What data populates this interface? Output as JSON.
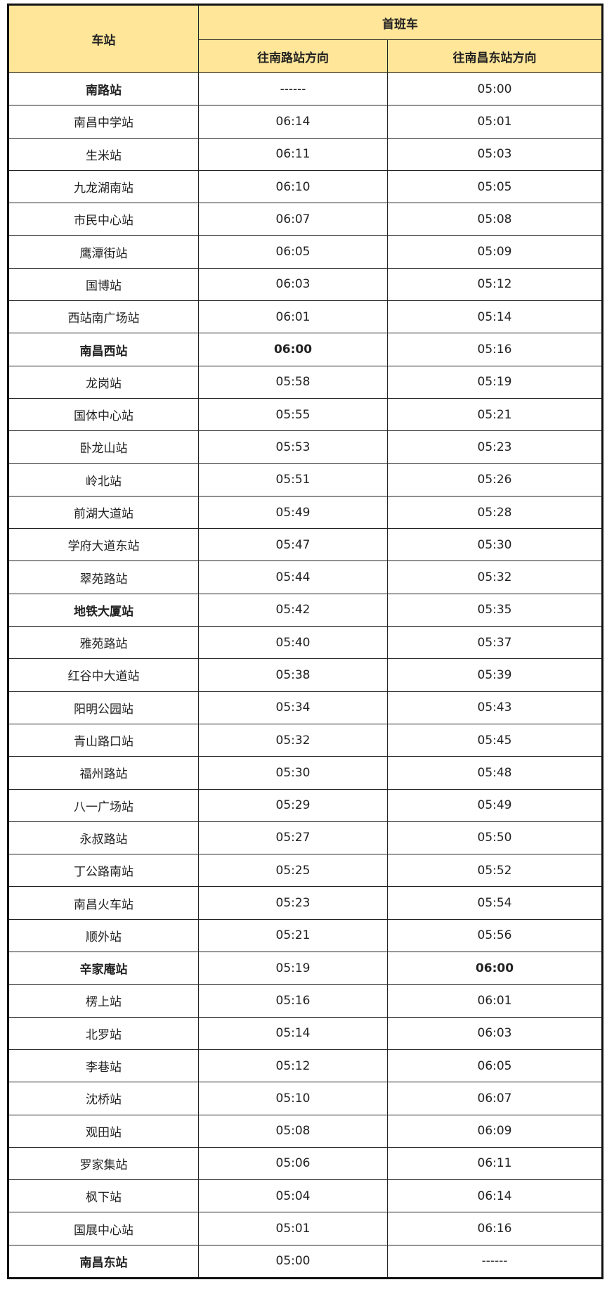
{
  "header": {
    "station": "车站",
    "first_train": "首班车",
    "dir_nanlu": "往南路站方向",
    "dir_nanchang_east": "往南昌东站方向"
  },
  "rows": [
    {
      "station": "南路站",
      "to_nanlu": "------",
      "to_east": "05:00",
      "bold_station": true
    },
    {
      "station": "南昌中学站",
      "to_nanlu": "06:14",
      "to_east": "05:01"
    },
    {
      "station": "生米站",
      "to_nanlu": "06:11",
      "to_east": "05:03"
    },
    {
      "station": "九龙湖南站",
      "to_nanlu": "06:10",
      "to_east": "05:05"
    },
    {
      "station": "市民中心站",
      "to_nanlu": "06:07",
      "to_east": "05:08"
    },
    {
      "station": "鹰潭街站",
      "to_nanlu": "06:05",
      "to_east": "05:09"
    },
    {
      "station": "国博站",
      "to_nanlu": "06:03",
      "to_east": "05:12"
    },
    {
      "station": "西站南广场站",
      "to_nanlu": "06:01",
      "to_east": "05:14"
    },
    {
      "station": "南昌西站",
      "to_nanlu": "06:00",
      "to_east": "05:16",
      "bold_station": true,
      "bold_nanlu": true
    },
    {
      "station": "龙岗站",
      "to_nanlu": "05:58",
      "to_east": "05:19"
    },
    {
      "station": "国体中心站",
      "to_nanlu": "05:55",
      "to_east": "05:21"
    },
    {
      "station": "卧龙山站",
      "to_nanlu": "05:53",
      "to_east": "05:23"
    },
    {
      "station": "岭北站",
      "to_nanlu": "05:51",
      "to_east": "05:26"
    },
    {
      "station": "前湖大道站",
      "to_nanlu": "05:49",
      "to_east": "05:28"
    },
    {
      "station": "学府大道东站",
      "to_nanlu": "05:47",
      "to_east": "05:30"
    },
    {
      "station": "翠苑路站",
      "to_nanlu": "05:44",
      "to_east": "05:32"
    },
    {
      "station": "地铁大厦站",
      "to_nanlu": "05:42",
      "to_east": "05:35",
      "bold_station": true
    },
    {
      "station": "雅苑路站",
      "to_nanlu": "05:40",
      "to_east": "05:37"
    },
    {
      "station": "红谷中大道站",
      "to_nanlu": "05:38",
      "to_east": "05:39"
    },
    {
      "station": "阳明公园站",
      "to_nanlu": "05:34",
      "to_east": "05:43"
    },
    {
      "station": "青山路口站",
      "to_nanlu": "05:32",
      "to_east": "05:45"
    },
    {
      "station": "福州路站",
      "to_nanlu": "05:30",
      "to_east": "05:48"
    },
    {
      "station": "八一广场站",
      "to_nanlu": "05:29",
      "to_east": "05:49"
    },
    {
      "station": "永叔路站",
      "to_nanlu": "05:27",
      "to_east": "05:50"
    },
    {
      "station": "丁公路南站",
      "to_nanlu": "05:25",
      "to_east": "05:52"
    },
    {
      "station": "南昌火车站",
      "to_nanlu": "05:23",
      "to_east": "05:54"
    },
    {
      "station": "顺外站",
      "to_nanlu": "05:21",
      "to_east": "05:56"
    },
    {
      "station": "辛家庵站",
      "to_nanlu": "05:19",
      "to_east": "06:00",
      "bold_station": true,
      "bold_east": true
    },
    {
      "station": "楞上站",
      "to_nanlu": "05:16",
      "to_east": "06:01"
    },
    {
      "station": "北罗站",
      "to_nanlu": "05:14",
      "to_east": "06:03"
    },
    {
      "station": "李巷站",
      "to_nanlu": "05:12",
      "to_east": "06:05"
    },
    {
      "station": "沈桥站",
      "to_nanlu": "05:10",
      "to_east": "06:07"
    },
    {
      "station": "观田站",
      "to_nanlu": "05:08",
      "to_east": "06:09"
    },
    {
      "station": "罗家集站",
      "to_nanlu": "05:06",
      "to_east": "06:11"
    },
    {
      "station": "枫下站",
      "to_nanlu": "05:04",
      "to_east": "06:14"
    },
    {
      "station": "国展中心站",
      "to_nanlu": "05:01",
      "to_east": "06:16"
    },
    {
      "station": "南昌东站",
      "to_nanlu": "05:00",
      "to_east": "------",
      "bold_station": true
    }
  ]
}
